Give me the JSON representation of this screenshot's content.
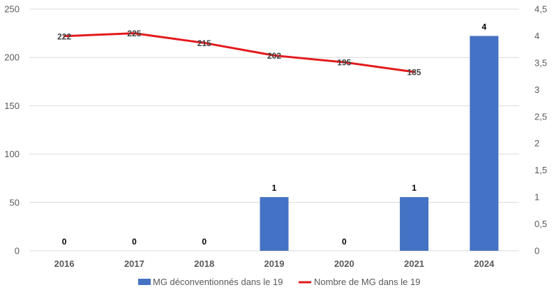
{
  "chart_data": {
    "type": "bar",
    "categories": [
      "2016",
      "2017",
      "2018",
      "2019",
      "2020",
      "2021",
      "2024"
    ],
    "series": [
      {
        "name": "MG déconventionnés dans le 19",
        "type": "bar",
        "axis": "right",
        "color": "#4472C4",
        "values": [
          0,
          0,
          0,
          1,
          0,
          1,
          4
        ],
        "labels": [
          "0",
          "0",
          "0",
          "1",
          "0",
          "1",
          "4"
        ]
      },
      {
        "name": "Nombre de MG dans le 19",
        "type": "line",
        "axis": "left",
        "color": "#E31A1C",
        "values": [
          222,
          225,
          215,
          202,
          195,
          185,
          null
        ],
        "labels": [
          "222",
          "225",
          "215",
          "202",
          "195",
          "185",
          ""
        ]
      }
    ],
    "y_left": {
      "range": [
        0,
        250
      ],
      "ticks": [
        0,
        50,
        100,
        150,
        200,
        250
      ],
      "tick_labels": [
        "0",
        "50",
        "100",
        "150",
        "200",
        "250"
      ]
    },
    "y_right": {
      "range": [
        0,
        4.5
      ],
      "ticks": [
        0,
        0.5,
        1,
        1.5,
        2,
        2.5,
        3,
        3.5,
        4,
        4.5
      ],
      "tick_labels": [
        "0",
        "0,5",
        "1",
        "1,5",
        "2",
        "2,5",
        "3",
        "3,5",
        "4",
        "4,5"
      ]
    },
    "grid": true,
    "legend_position": "bottom",
    "grid_color": "#D9D9D9"
  }
}
